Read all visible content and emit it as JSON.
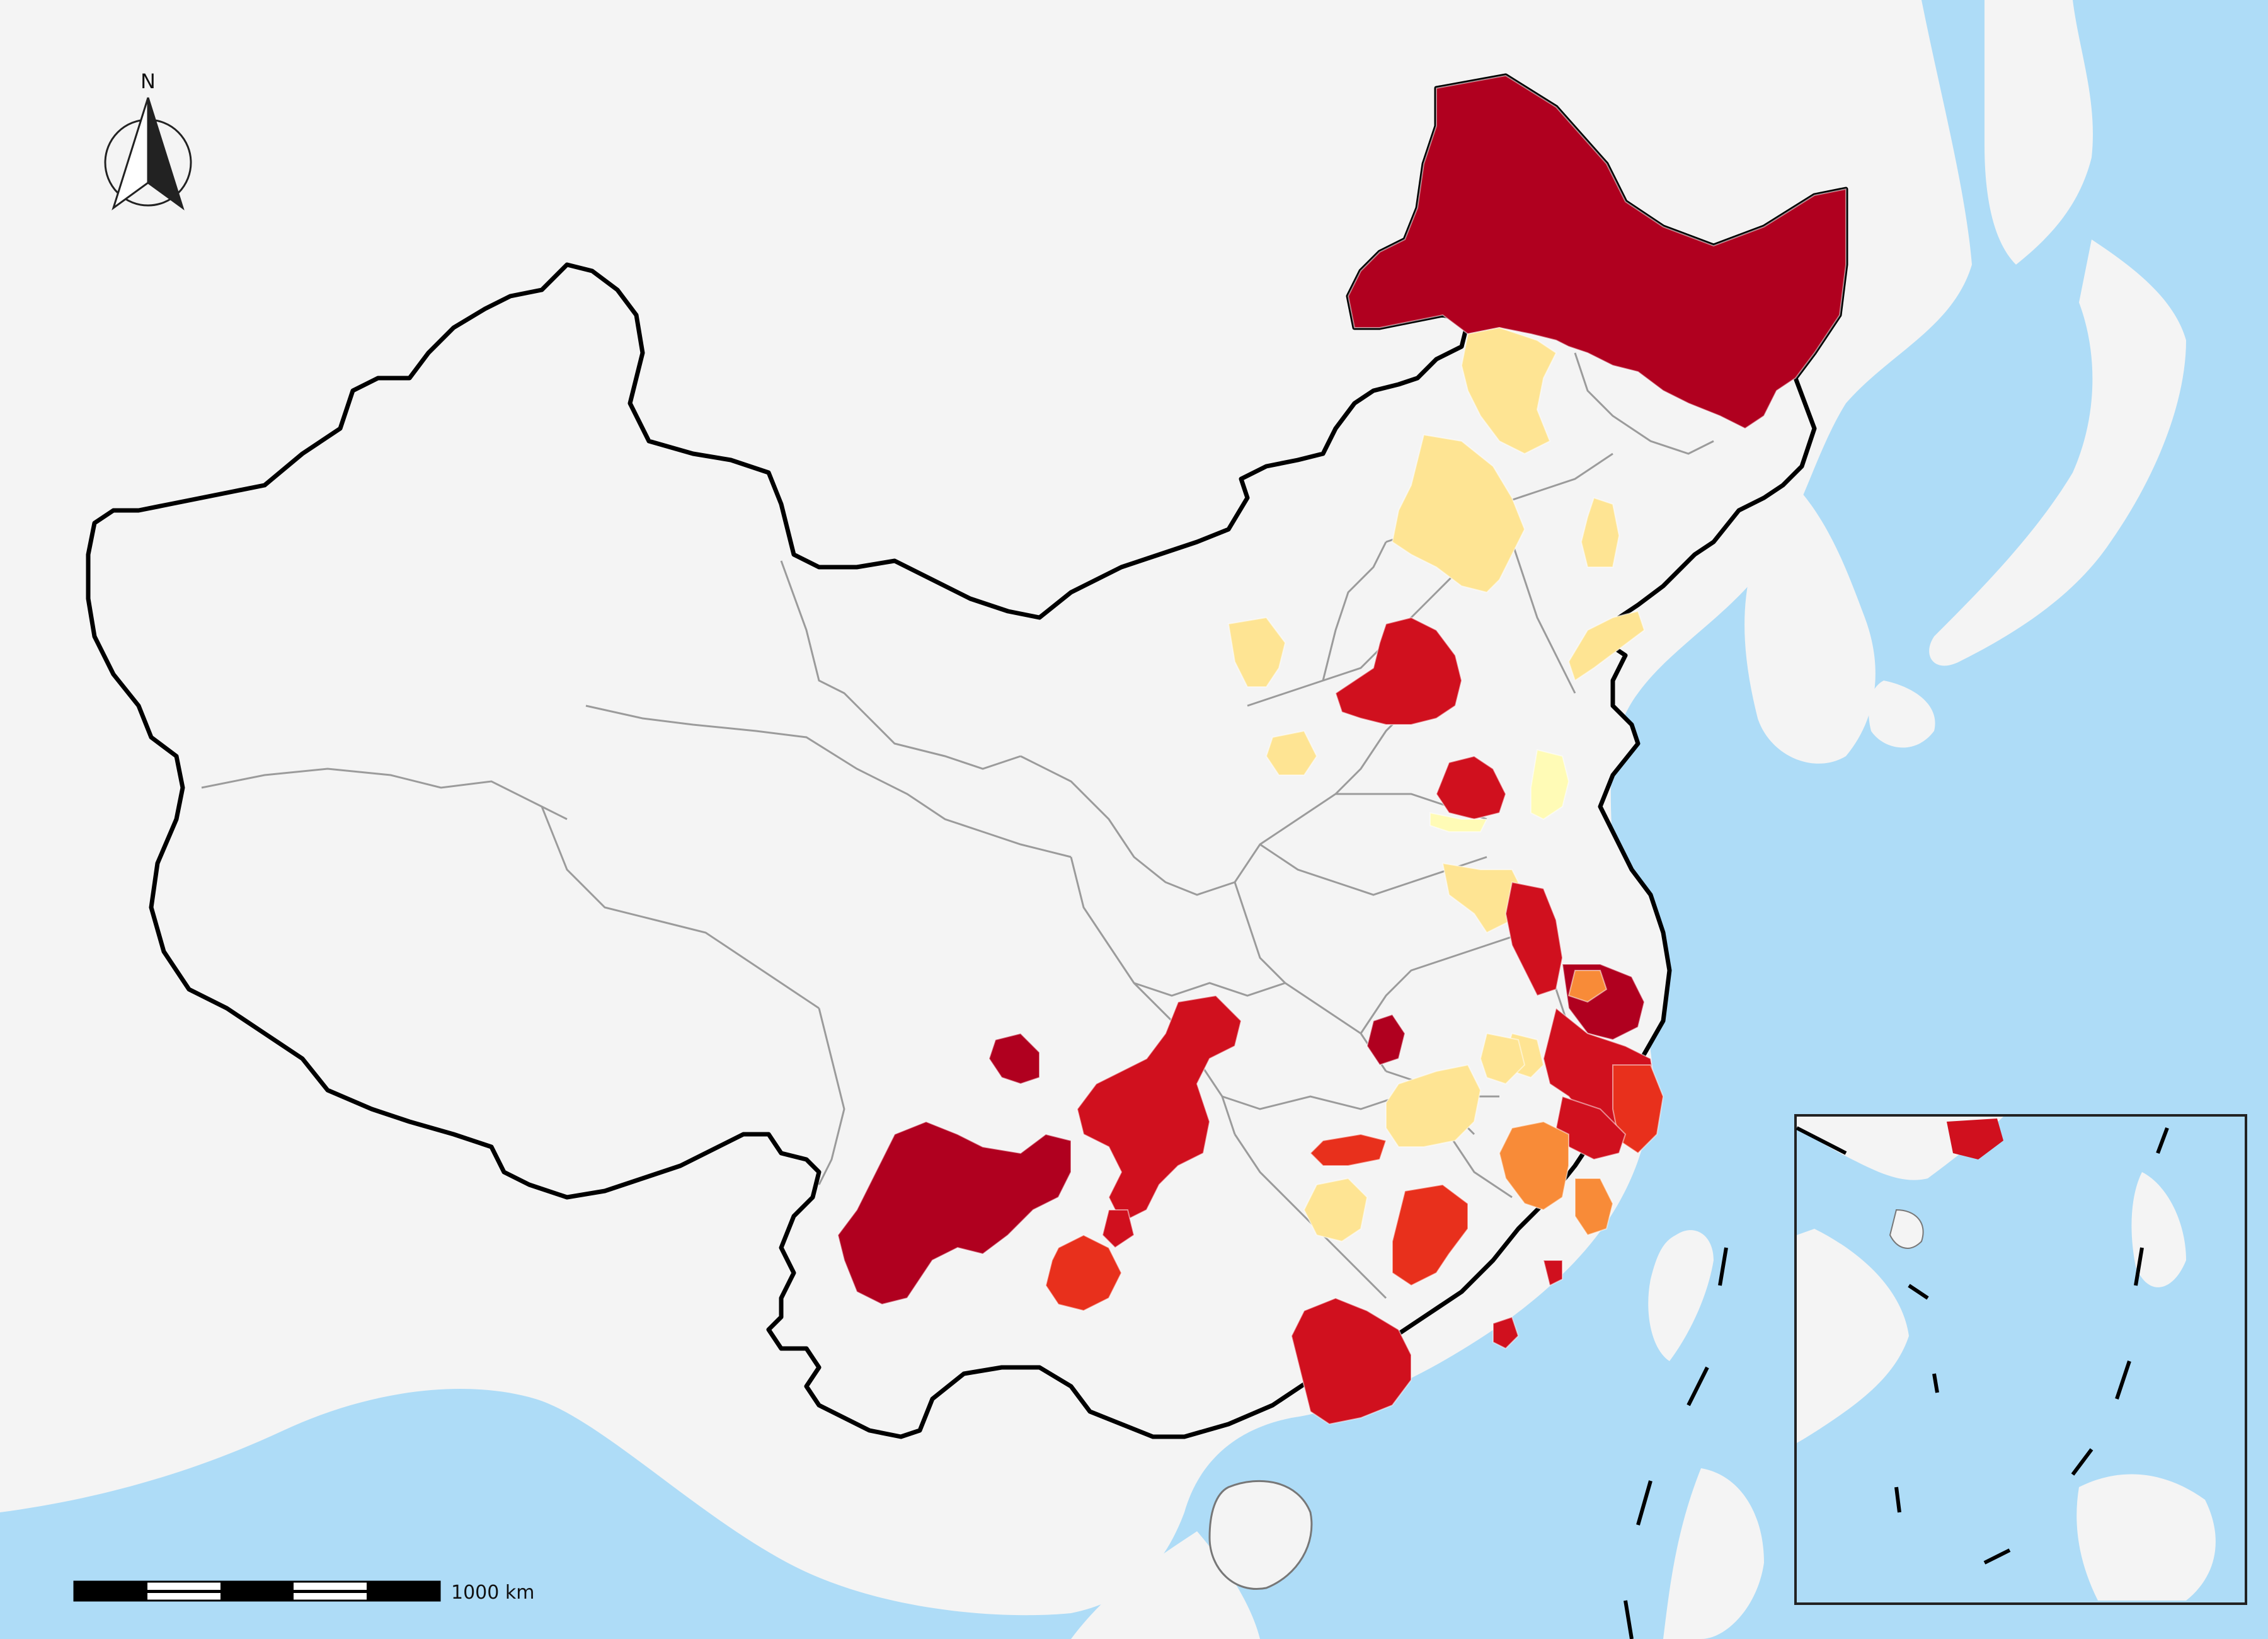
{
  "north_arrow": {
    "label": "N"
  },
  "scale_bar": {
    "label": "1000 km",
    "segments": 5
  },
  "colors": {
    "sea": "#aedcf7",
    "land": "#f4f4f4",
    "boundary": "#000000",
    "province_line": "#9b9b9b",
    "class_dark_red": "#b0001f",
    "class_red": "#d0101e",
    "class_red_orange": "#e8301c",
    "class_orange": "#f88b38",
    "class_light_yellow": "#fee493",
    "class_pale_yellow": "#fffbb6"
  },
  "inset": {
    "description_icon": "south-china-sea-inset"
  }
}
